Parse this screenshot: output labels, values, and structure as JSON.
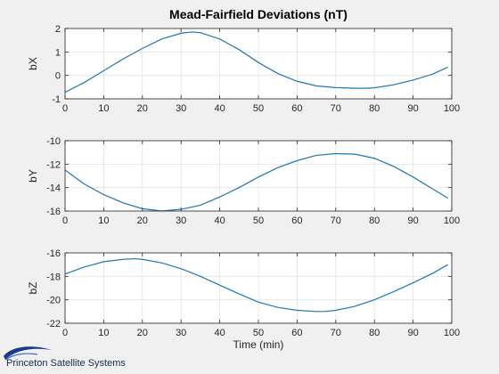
{
  "chart_data": {
    "type": "line",
    "title": "Mead-Fairfield Deviations (nT)",
    "xlabel": "Time (min)",
    "grid": true,
    "line_color": "#1f77b4",
    "panels": [
      {
        "ylabel": "bX",
        "xlim": [
          0,
          100
        ],
        "ylim": [
          -1,
          2
        ],
        "xticks": [
          "0",
          "10",
          "20",
          "30",
          "40",
          "50",
          "60",
          "70",
          "80",
          "90",
          "100"
        ],
        "yticks": [
          "-1",
          "0",
          "1",
          "2"
        ],
        "x": [
          0,
          5,
          10,
          15,
          20,
          25,
          30,
          33,
          35,
          40,
          45,
          50,
          55,
          60,
          65,
          70,
          75,
          78,
          80,
          85,
          90,
          95,
          99
        ],
        "y": [
          -0.72,
          -0.3,
          0.2,
          0.7,
          1.15,
          1.55,
          1.8,
          1.85,
          1.82,
          1.55,
          1.1,
          0.55,
          0.08,
          -0.25,
          -0.45,
          -0.52,
          -0.55,
          -0.55,
          -0.53,
          -0.4,
          -0.2,
          0.05,
          0.35
        ]
      },
      {
        "ylabel": "bY",
        "xlim": [
          0,
          100
        ],
        "ylim": [
          -16,
          -10
        ],
        "xticks": [
          "0",
          "10",
          "20",
          "30",
          "40",
          "50",
          "60",
          "70",
          "80",
          "90",
          "100"
        ],
        "yticks": [
          "-16",
          "-14",
          "-12",
          "-10"
        ],
        "x": [
          0,
          5,
          10,
          15,
          20,
          25,
          30,
          35,
          40,
          45,
          50,
          55,
          60,
          65,
          70,
          75,
          80,
          85,
          90,
          95,
          99
        ],
        "y": [
          -12.5,
          -13.7,
          -14.6,
          -15.3,
          -15.8,
          -16.0,
          -15.85,
          -15.5,
          -14.8,
          -14.0,
          -13.1,
          -12.3,
          -11.7,
          -11.25,
          -11.1,
          -11.15,
          -11.5,
          -12.2,
          -13.1,
          -14.1,
          -14.9
        ]
      },
      {
        "ylabel": "bZ",
        "xlim": [
          0,
          100
        ],
        "ylim": [
          -22,
          -16
        ],
        "xticks": [
          "0",
          "10",
          "20",
          "30",
          "40",
          "50",
          "60",
          "70",
          "80",
          "90",
          "100"
        ],
        "yticks": [
          "-22",
          "-20",
          "-18",
          "-16"
        ],
        "x": [
          0,
          5,
          10,
          15,
          18,
          20,
          25,
          30,
          35,
          40,
          45,
          50,
          55,
          60,
          65,
          67,
          70,
          75,
          80,
          85,
          90,
          95,
          99
        ],
        "y": [
          -17.8,
          -17.2,
          -16.75,
          -16.55,
          -16.5,
          -16.55,
          -16.85,
          -17.35,
          -18.0,
          -18.75,
          -19.5,
          -20.2,
          -20.65,
          -20.9,
          -21.0,
          -21.0,
          -20.9,
          -20.55,
          -20.0,
          -19.3,
          -18.55,
          -17.75,
          -17.0
        ]
      }
    ]
  },
  "footer": {
    "company": "Princeton Satellite Systems"
  }
}
